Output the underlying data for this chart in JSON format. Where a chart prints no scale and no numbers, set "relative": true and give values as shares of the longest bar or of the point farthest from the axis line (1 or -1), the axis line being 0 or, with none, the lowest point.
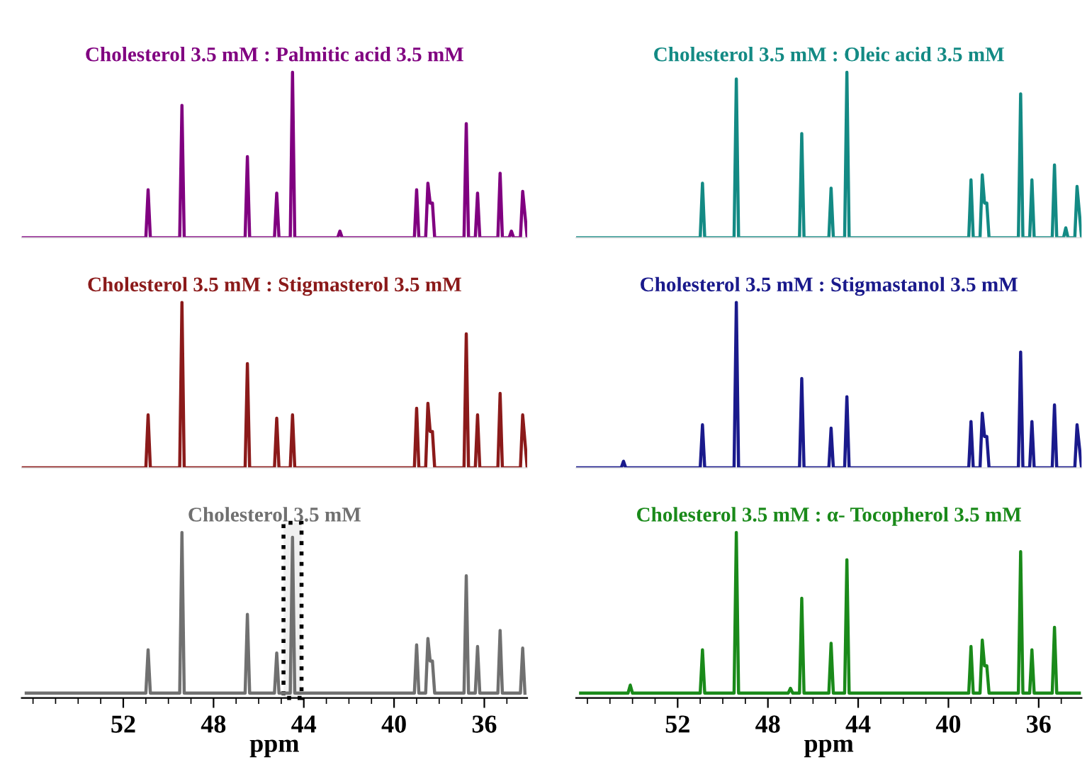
{
  "chart_data": [
    {
      "type": "line",
      "title": "Cholesterol 3.5 mM : Palmitic acid 3.5 mM",
      "relative": true,
      "xlim": [
        56.5,
        34.1
      ],
      "xticks": [
        52,
        48,
        44,
        40,
        36
      ],
      "tick_labels": false,
      "series": [
        {
          "color": "#800080",
          "x": [
            56.5,
            51.0,
            50.9,
            50.8,
            49.5,
            49.4,
            49.3,
            46.6,
            46.5,
            46.4,
            45.3,
            45.2,
            45.1,
            44.6,
            44.5,
            44.4,
            42.5,
            42.4,
            42.3,
            39.1,
            39.0,
            38.9,
            38.6,
            38.5,
            38.4,
            38.3,
            38.2,
            36.9,
            36.8,
            36.7,
            36.4,
            36.3,
            36.2,
            35.4,
            35.3,
            35.2,
            34.9,
            34.8,
            34.7,
            34.4,
            34.3,
            34.1
          ],
          "values": [
            0,
            0,
            0.29,
            0,
            0,
            0.8,
            0,
            0,
            0.49,
            0,
            0,
            0.27,
            0,
            0,
            1,
            0,
            0,
            0.04,
            0,
            0,
            0.29,
            0,
            0,
            0.33,
            0.21,
            0.21,
            0,
            0,
            0.69,
            0,
            0,
            0.27,
            0,
            0,
            0.39,
            0,
            0,
            0.04,
            0,
            0,
            0.28,
            0
          ]
        }
      ]
    },
    {
      "type": "line",
      "title": "Cholesterol 3.5 mM : Oleic acid 3.5 mM",
      "relative": true,
      "xlim": [
        56.5,
        34.1
      ],
      "xticks": [
        52,
        48,
        44,
        40,
        36
      ],
      "tick_labels": false,
      "series": [
        {
          "color": "#138a84",
          "x": [
            56.5,
            51.0,
            50.9,
            50.8,
            49.5,
            49.4,
            49.3,
            46.6,
            46.5,
            46.4,
            45.3,
            45.2,
            45.1,
            44.6,
            44.5,
            44.4,
            39.1,
            39.0,
            38.9,
            38.6,
            38.5,
            38.4,
            38.3,
            38.2,
            36.9,
            36.8,
            36.7,
            36.4,
            36.3,
            36.2,
            35.4,
            35.3,
            35.2,
            34.9,
            34.8,
            34.7,
            34.4,
            34.3,
            34.1
          ],
          "values": [
            0,
            0,
            0.33,
            0,
            0,
            0.96,
            0,
            0,
            0.63,
            0,
            0,
            0.3,
            0,
            0,
            1,
            0,
            0,
            0.35,
            0,
            0,
            0.38,
            0.21,
            0.21,
            0,
            0,
            0.87,
            0,
            0,
            0.35,
            0,
            0,
            0.44,
            0,
            0,
            0.06,
            0,
            0,
            0.31,
            0
          ]
        }
      ]
    },
    {
      "type": "line",
      "title": "Cholesterol 3.5 mM : Stigmasterol 3.5 mM",
      "relative": true,
      "xlim": [
        56.5,
        34.1
      ],
      "xticks": [
        52,
        48,
        44,
        40,
        36
      ],
      "tick_labels": false,
      "series": [
        {
          "color": "#8b1a1a",
          "x": [
            56.5,
            51.0,
            50.9,
            50.8,
            49.5,
            49.4,
            49.3,
            46.6,
            46.5,
            46.4,
            45.3,
            45.2,
            45.1,
            44.6,
            44.5,
            44.4,
            39.1,
            39.0,
            38.9,
            38.6,
            38.5,
            38.4,
            38.3,
            38.2,
            36.9,
            36.8,
            36.7,
            36.4,
            36.3,
            36.2,
            35.4,
            35.3,
            35.2,
            34.4,
            34.3,
            34.1
          ],
          "values": [
            0,
            0,
            0.32,
            0,
            0,
            1,
            0,
            0,
            0.63,
            0,
            0,
            0.3,
            0,
            0,
            0.32,
            0,
            0,
            0.36,
            0,
            0,
            0.39,
            0.22,
            0.22,
            0,
            0,
            0.81,
            0,
            0,
            0.32,
            0,
            0,
            0.45,
            0,
            0,
            0.32,
            0
          ]
        }
      ]
    },
    {
      "type": "line",
      "title": "Cholesterol 3.5 mM : Stigmastanol 3.5 mM",
      "relative": true,
      "xlim": [
        56.5,
        34.1
      ],
      "xticks": [
        52,
        48,
        44,
        40,
        36
      ],
      "tick_labels": false,
      "series": [
        {
          "color": "#1a1a8c",
          "x": [
            56.5,
            54.5,
            54.4,
            54.3,
            51.0,
            50.9,
            50.8,
            49.5,
            49.4,
            49.3,
            46.6,
            46.5,
            46.4,
            45.3,
            45.2,
            45.1,
            44.6,
            44.5,
            44.4,
            39.1,
            39.0,
            38.9,
            38.6,
            38.5,
            38.4,
            38.3,
            38.2,
            36.9,
            36.8,
            36.7,
            36.4,
            36.3,
            36.2,
            35.4,
            35.3,
            35.2,
            34.4,
            34.3,
            34.1
          ],
          "values": [
            0,
            0,
            0.04,
            0,
            0,
            0.26,
            0,
            0,
            1,
            0,
            0,
            0.54,
            0,
            0,
            0.24,
            0,
            0,
            0.43,
            0,
            0,
            0.28,
            0,
            0,
            0.33,
            0.19,
            0.19,
            0,
            0,
            0.7,
            0,
            0,
            0.28,
            0,
            0,
            0.38,
            0,
            0,
            0.26,
            0
          ]
        }
      ]
    },
    {
      "type": "line",
      "title": "Cholesterol 3.5 mM",
      "relative": true,
      "xlim": [
        56.5,
        34.1
      ],
      "xlabel": "ppm",
      "xticks": [
        52,
        48,
        44,
        40,
        36
      ],
      "bands": [
        {
          "axis": "x",
          "from": 44.9,
          "to": 44.1,
          "color": "#000000"
        }
      ],
      "series": [
        {
          "color": "#707070",
          "x": [
            56.3,
            51.0,
            50.9,
            50.8,
            49.5,
            49.4,
            49.3,
            46.6,
            46.5,
            46.4,
            45.3,
            45.2,
            45.1,
            44.6,
            44.5,
            44.4,
            39.1,
            39.0,
            38.9,
            38.6,
            38.5,
            38.4,
            38.3,
            38.2,
            36.9,
            36.8,
            36.7,
            36.4,
            36.3,
            36.2,
            35.4,
            35.3,
            35.2,
            34.4,
            34.3,
            34.2
          ],
          "values": [
            0,
            0,
            0.27,
            0,
            0,
            1,
            0,
            0,
            0.49,
            0,
            0,
            0.25,
            0,
            0,
            0.97,
            0,
            0,
            0.3,
            0,
            0,
            0.34,
            0.2,
            0.2,
            0,
            0,
            0.73,
            0,
            0,
            0.29,
            0,
            0,
            0.39,
            0,
            0,
            0.28,
            0
          ]
        }
      ]
    },
    {
      "type": "line",
      "title": "Cholesterol 3.5 mM : α- Tocopherol 3.5 mM",
      "relative": true,
      "xlim": [
        56.5,
        34.1
      ],
      "xlabel": "ppm",
      "xticks": [
        52,
        48,
        44,
        40,
        36
      ],
      "series": [
        {
          "color": "#1a8a1a",
          "x": [
            56.3,
            54.2,
            54.1,
            54.0,
            51.0,
            50.9,
            50.8,
            49.5,
            49.4,
            49.3,
            47.1,
            47.0,
            46.9,
            46.6,
            46.5,
            46.4,
            45.3,
            45.2,
            45.1,
            44.6,
            44.5,
            44.4,
            39.1,
            39.0,
            38.9,
            38.6,
            38.5,
            38.4,
            38.3,
            38.2,
            36.9,
            36.8,
            36.7,
            36.4,
            36.3,
            36.2,
            35.4,
            35.3,
            35.2,
            34.2
          ],
          "values": [
            0,
            0,
            0.05,
            0,
            0,
            0.27,
            0,
            0,
            1,
            0,
            0,
            0.03,
            0,
            0,
            0.59,
            0,
            0,
            0.31,
            0,
            0,
            0.83,
            0,
            0,
            0.29,
            0,
            0,
            0.33,
            0.17,
            0.17,
            0,
            0,
            0.88,
            0,
            0,
            0.27,
            0,
            0,
            0.41,
            0,
            0
          ]
        }
      ]
    }
  ]
}
